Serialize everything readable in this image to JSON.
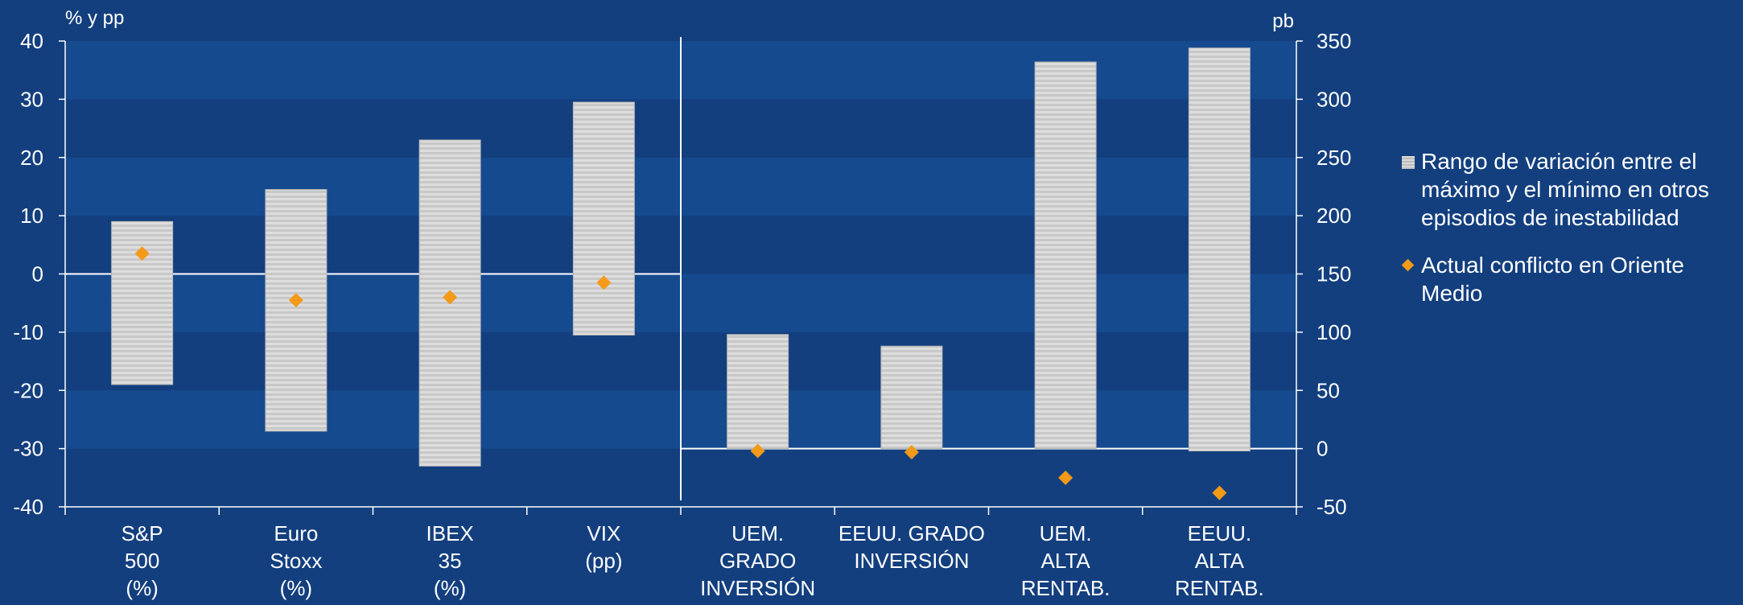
{
  "chart_data": {
    "type": "bar",
    "left_axis": {
      "unit_label": "% y pp",
      "ticks": [
        40,
        30,
        20,
        10,
        0,
        -10,
        -20,
        -30,
        -40
      ],
      "range": [
        -40,
        40
      ]
    },
    "right_axis": {
      "unit_label": "pb",
      "ticks": [
        350,
        300,
        250,
        200,
        150,
        100,
        50,
        0,
        -50
      ],
      "range": [
        -50,
        350
      ]
    },
    "categories": [
      [
        "S&P",
        "500",
        "(%)"
      ],
      [
        "Euro",
        "Stoxx",
        "(%)"
      ],
      [
        "IBEX",
        "35",
        "(%)"
      ],
      [
        "VIX",
        "(pp)"
      ],
      [
        "UEM.",
        "GRADO",
        "INVERSIÓN"
      ],
      [
        "EEUU.  GRADO",
        "INVERSIÓN"
      ],
      [
        "UEM.",
        "ALTA",
        "RENTAB."
      ],
      [
        "EEUU.",
        "ALTA",
        "RENTAB."
      ]
    ],
    "series": [
      {
        "name": "Rango de variación entre el máximo y el mínimo en otros episodios de inestabilidad",
        "type": "range-bar",
        "ranges": [
          [
            -19,
            9
          ],
          [
            -27,
            14.5
          ],
          [
            -33,
            23
          ],
          [
            -10.5,
            29.5
          ],
          [
            0,
            98
          ],
          [
            0,
            88
          ],
          [
            0,
            332
          ],
          [
            -2,
            344
          ]
        ]
      },
      {
        "name": "Actual conflicto en Oriente Medio",
        "type": "marker",
        "values": [
          3.5,
          -4.5,
          -4,
          -1.5,
          -2,
          -3,
          -25,
          -38
        ]
      }
    ],
    "axis_assignment": [
      "left",
      "left",
      "left",
      "left",
      "right",
      "right",
      "right",
      "right"
    ],
    "colors": {
      "range": "#cfcfcf",
      "marker": "#f39a19",
      "background": "#133f7f",
      "band": "#164a8e"
    }
  }
}
